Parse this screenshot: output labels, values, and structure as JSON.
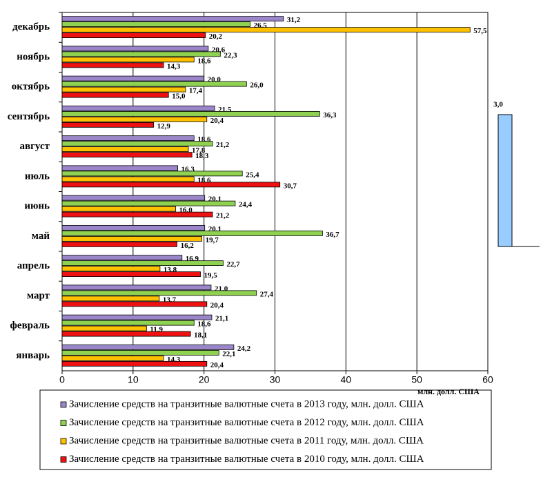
{
  "chart_data": {
    "type": "bar",
    "orientation": "horizontal",
    "categories": [
      "декабрь",
      "ноябрь",
      "октябрь",
      "сентябрь",
      "август",
      "июль",
      "июнь",
      "май",
      "апрель",
      "март",
      "февраль",
      "январь"
    ],
    "series": [
      {
        "name": "Зачисление средств на транзитные валютные счета в 2013 году, млн. долл. США",
        "color": "#9b86c9",
        "values": [
          31.2,
          20.6,
          20.0,
          21.5,
          18.6,
          16.3,
          20.1,
          20.1,
          16.9,
          21.0,
          21.1,
          24.2
        ],
        "value_labels": [
          "31,2",
          "20,6",
          "20,0",
          "21,5",
          "18,6",
          "16,3",
          "20,1",
          "20,1",
          "16,9",
          "21,0",
          "21,1",
          "24,2"
        ]
      },
      {
        "name": "Зачисление средств на транзитные валютные счета в 2012 году, млн. долл. США",
        "color": "#8fd150",
        "values": [
          26.5,
          22.3,
          26.0,
          36.3,
          21.2,
          25.4,
          24.4,
          36.7,
          22.7,
          27.4,
          18.6,
          22.1
        ],
        "value_labels": [
          "26,5",
          "22,3",
          "26,0",
          "36,3",
          "21,2",
          "25,4",
          "24,4",
          "36,7",
          "22,7",
          "27,4",
          "18,6",
          "22,1"
        ]
      },
      {
        "name": "Зачисление средств на транзитные валютные счета в 2011 году, млн. долл. США",
        "color": "#ffc000",
        "values": [
          57.5,
          18.6,
          17.4,
          20.4,
          17.8,
          18.6,
          16.0,
          19.7,
          13.8,
          13.7,
          11.9,
          14.3
        ],
        "value_labels": [
          "57,5",
          "18,6",
          "17,4",
          "20,4",
          "17,8",
          "18,6",
          "16,0",
          "19,7",
          "13,8",
          "13,7",
          "11,9",
          "14,3"
        ]
      },
      {
        "name": "Зачисление средств на транзитные валютные счета в 2010 году, млн. долл. США",
        "color": "#ee1111",
        "values": [
          20.2,
          14.3,
          15.0,
          12.9,
          18.3,
          30.7,
          21.2,
          16.2,
          19.5,
          20.4,
          18.1,
          20.4
        ],
        "value_labels": [
          "20,2",
          "14,3",
          "15,0",
          "12,9",
          "18,3",
          "30,7",
          "21,2",
          "16,2",
          "19,5",
          "20,4",
          "18,1",
          "20,4"
        ]
      }
    ],
    "x_label": "млн. долл. США",
    "xlim": [
      0,
      60
    ],
    "xticks": [
      0,
      10,
      20,
      30,
      40,
      50,
      60
    ],
    "grid": true
  },
  "fragment": {
    "label": "3,0"
  }
}
